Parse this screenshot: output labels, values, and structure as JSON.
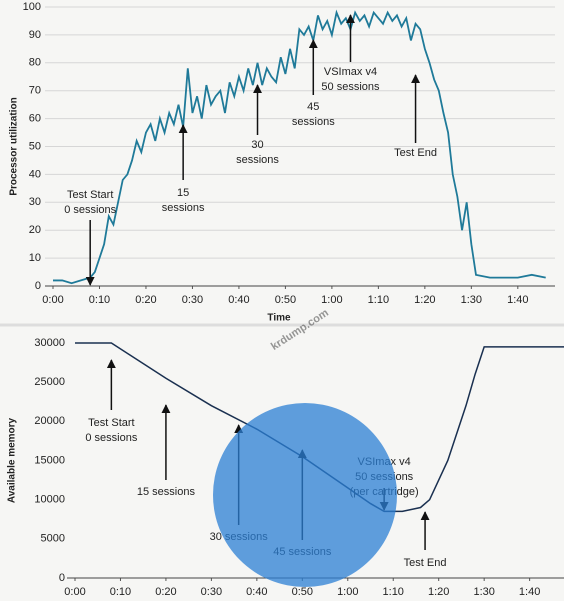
{
  "watermark": "krdump.com",
  "chart_data": [
    {
      "type": "line",
      "ylabel": "Processor utilization",
      "xlabel": "Time",
      "xlim": [
        0,
        108
      ],
      "ylim": [
        0,
        100
      ],
      "xticks": [
        {
          "value": 0,
          "label": "0:00"
        },
        {
          "value": 10,
          "label": "0:10"
        },
        {
          "value": 20,
          "label": "0:20"
        },
        {
          "value": 30,
          "label": "0:30"
        },
        {
          "value": 40,
          "label": "0:40"
        },
        {
          "value": 50,
          "label": "0:50"
        },
        {
          "value": 60,
          "label": "1:00"
        },
        {
          "value": 70,
          "label": "1:10"
        },
        {
          "value": 80,
          "label": "1:20"
        },
        {
          "value": 90,
          "label": "1:30"
        },
        {
          "value": 100,
          "label": "1:40"
        }
      ],
      "yticks": [
        0,
        10,
        20,
        30,
        40,
        50,
        60,
        70,
        80,
        90,
        100
      ],
      "grid": true,
      "series": [
        {
          "color": "#1f7a99",
          "x": [
            0,
            2,
            4,
            6,
            8,
            9,
            10,
            11,
            12,
            13,
            14,
            15,
            16,
            17,
            18,
            19,
            20,
            21,
            22,
            23,
            24,
            25,
            26,
            27,
            28,
            29,
            30,
            31,
            32,
            33,
            34,
            35,
            36,
            37,
            38,
            39,
            40,
            41,
            42,
            43,
            44,
            45,
            46,
            47,
            48,
            49,
            50,
            51,
            52,
            53,
            54,
            55,
            56,
            57,
            58,
            59,
            60,
            61,
            62,
            63,
            64,
            65,
            66,
            67,
            68,
            69,
            70,
            71,
            72,
            73,
            74,
            75,
            76,
            77,
            78,
            79,
            80,
            81,
            82,
            83,
            84,
            85,
            86,
            87,
            88,
            89,
            90,
            91,
            94,
            97,
            100,
            103,
            106
          ],
          "values": [
            2,
            2,
            1,
            2,
            3,
            5,
            10,
            15,
            25,
            22,
            30,
            38,
            40,
            45,
            52,
            48,
            55,
            58,
            52,
            60,
            55,
            62,
            58,
            65,
            57,
            78,
            62,
            68,
            60,
            72,
            65,
            68,
            70,
            62,
            73,
            68,
            75,
            70,
            78,
            72,
            80,
            72,
            78,
            75,
            73,
            82,
            76,
            85,
            78,
            92,
            90,
            93,
            88,
            97,
            92,
            95,
            90,
            98,
            94,
            96,
            92,
            98,
            95,
            97,
            93,
            98,
            96,
            94,
            98,
            95,
            97,
            93,
            96,
            88,
            94,
            92,
            85,
            80,
            74,
            70,
            62,
            55,
            40,
            32,
            20,
            30,
            15,
            4,
            3,
            3,
            3,
            4,
            3
          ]
        }
      ],
      "annotations": [
        {
          "text": [
            "Test Start",
            "0 sessions"
          ],
          "x": 8
        },
        {
          "text": [
            "15",
            "sessions"
          ],
          "x": 28
        },
        {
          "text": [
            "30",
            "sessions"
          ],
          "x": 44
        },
        {
          "text": [
            "45",
            "sessions"
          ],
          "x": 56
        },
        {
          "text": [
            "VSImax v4",
            "50 sessions"
          ],
          "x": 64
        },
        {
          "text": [
            "Test End"
          ],
          "x": 78
        }
      ]
    },
    {
      "type": "line",
      "ylabel": "Available memory",
      "xlim": [
        0,
        108
      ],
      "ylim": [
        0,
        30000
      ],
      "xticks": [
        {
          "value": 0,
          "label": "0:00"
        },
        {
          "value": 10,
          "label": "0:10"
        },
        {
          "value": 20,
          "label": "0:20"
        },
        {
          "value": 30,
          "label": "0:30"
        },
        {
          "value": 40,
          "label": "0:40"
        },
        {
          "value": 50,
          "label": "0:50"
        },
        {
          "value": 60,
          "label": "1:00"
        },
        {
          "value": 70,
          "label": "1:10"
        },
        {
          "value": 80,
          "label": "1:20"
        },
        {
          "value": 90,
          "label": "1:30"
        },
        {
          "value": 100,
          "label": "1:40"
        }
      ],
      "yticks": [
        0,
        5000,
        10000,
        15000,
        20000,
        25000,
        30000
      ],
      "grid": false,
      "series": [
        {
          "color": "#1a3050",
          "x": [
            0,
            8,
            12,
            20,
            30,
            40,
            50,
            55,
            60,
            65,
            68,
            72,
            76,
            78,
            82,
            86,
            88,
            90,
            108
          ],
          "values": [
            30000,
            30000,
            28500,
            25500,
            22000,
            19000,
            15500,
            13500,
            11500,
            9500,
            8500,
            8500,
            9000,
            10000,
            15000,
            22000,
            26000,
            29500,
            29500
          ]
        }
      ],
      "annotations": [
        {
          "text": [
            "Test Start",
            "0 sessions"
          ],
          "x": 8
        },
        {
          "text": [
            "15 sessions"
          ],
          "x": 20
        },
        {
          "text": [
            "30 sessions"
          ],
          "x": 36
        },
        {
          "text": [
            "45 sessions"
          ],
          "x": 50
        },
        {
          "text": [
            "VSImax v4",
            "50 sessions",
            "(per cartridge)"
          ],
          "x": 68
        },
        {
          "text": [
            "Test End"
          ],
          "x": 77
        }
      ]
    }
  ]
}
